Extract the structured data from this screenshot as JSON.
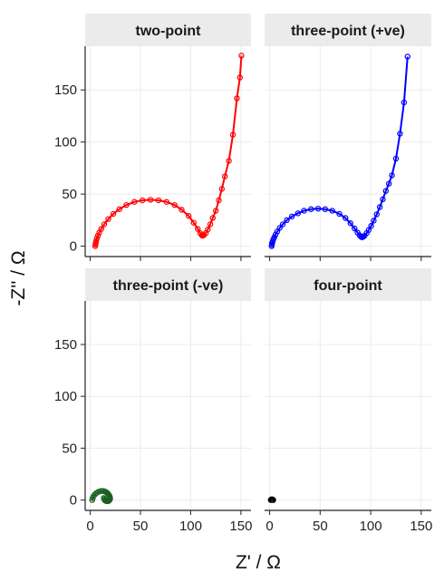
{
  "chart_data": {
    "type": "scatter",
    "layout": "facet-2x2",
    "xlabel": "Z' /  Ω",
    "ylabel": "-Z'' /  Ω",
    "xlim": [
      -5,
      160
    ],
    "ylim": [
      -10,
      192
    ],
    "xticks": [
      0,
      50,
      100,
      150
    ],
    "yticks": [
      0,
      50,
      100,
      150
    ],
    "grid": true,
    "panels": [
      {
        "title": "two-point",
        "color": "#ff0000",
        "line": true,
        "x": [
          5.0,
          5.2,
          5.5,
          6.0,
          6.7,
          7.7,
          9.0,
          11.0,
          14.0,
          18.0,
          23.0,
          29.0,
          36.0,
          44.0,
          52.0,
          60.0,
          68.0,
          76.0,
          84.0,
          91.0,
          98.0,
          103.0,
          107.0,
          109.5,
          111.0,
          112.0,
          113.0,
          115.0,
          117.0,
          119.5,
          122.0,
          125.0,
          128.0,
          131.0,
          134.0,
          138.0,
          142.0,
          146.0,
          149.0,
          150.5
        ],
        "y": [
          0.0,
          1.5,
          3.0,
          5.0,
          7.5,
          10.0,
          13.0,
          16.5,
          21.0,
          26.0,
          31.0,
          35.5,
          39.5,
          42.5,
          44.0,
          44.5,
          44.0,
          42.5,
          39.5,
          35.0,
          29.0,
          22.5,
          16.5,
          12.5,
          10.5,
          10.0,
          10.5,
          12.5,
          16.0,
          21.0,
          27.0,
          34.0,
          44.0,
          55.0,
          67.0,
          82.0,
          107.0,
          142.0,
          162.0,
          183.0
        ]
      },
      {
        "title": "three-point (+ve)",
        "color": "#0000ff",
        "line": true,
        "x": [
          2.0,
          2.2,
          2.5,
          3.0,
          3.7,
          4.6,
          5.8,
          7.5,
          10.0,
          13.0,
          17.0,
          22.0,
          28.0,
          34.0,
          41.0,
          48.0,
          55.0,
          62.0,
          69.0,
          75.0,
          80.0,
          84.0,
          87.0,
          89.0,
          90.5,
          91.5,
          92.5,
          94.0,
          96.0,
          98.0,
          100.5,
          103.0,
          106.0,
          109.0,
          112.0,
          115.0,
          118.0,
          121.0,
          125.0,
          129.0,
          133.0,
          136.5
        ],
        "y": [
          0.0,
          1.5,
          3.0,
          4.5,
          6.5,
          8.5,
          11.0,
          14.0,
          17.5,
          21.0,
          25.0,
          28.5,
          31.5,
          34.0,
          35.5,
          36.0,
          35.5,
          34.0,
          31.0,
          27.0,
          22.0,
          17.0,
          13.0,
          10.5,
          9.0,
          8.5,
          9.0,
          10.0,
          12.5,
          15.5,
          19.5,
          24.5,
          30.5,
          37.5,
          45.0,
          53.0,
          60.0,
          68.0,
          84.0,
          108.0,
          138.0,
          182.0
        ]
      },
      {
        "title": "three-point (-ve)",
        "color": "#1b5e20",
        "line": true,
        "x": [
          2.0,
          2.5,
          3.3,
          4.5,
          6.0,
          7.8,
          9.7,
          11.6,
          13.4,
          15.0,
          16.4,
          17.6,
          18.6,
          19.3,
          19.7,
          19.8,
          19.5,
          18.8,
          17.8,
          16.6,
          15.4,
          14.4,
          13.8,
          13.6
        ],
        "y": [
          0.0,
          1.8,
          3.6,
          5.2,
          6.6,
          7.7,
          8.4,
          8.7,
          8.6,
          8.1,
          7.3,
          6.2,
          5.0,
          3.7,
          2.4,
          1.2,
          0.2,
          -0.6,
          -1.1,
          -1.2,
          -0.8,
          0.0,
          1.0,
          2.0
        ]
      },
      {
        "title": "four-point",
        "color": "#000000",
        "line": true,
        "x": [
          1.2,
          1.4,
          1.7,
          2.0,
          2.3,
          2.6,
          2.9,
          3.1,
          3.3,
          3.4,
          3.5
        ],
        "y": [
          0.0,
          0.3,
          0.5,
          0.6,
          0.6,
          0.5,
          0.4,
          0.3,
          0.2,
          0.1,
          0.0
        ]
      }
    ]
  }
}
